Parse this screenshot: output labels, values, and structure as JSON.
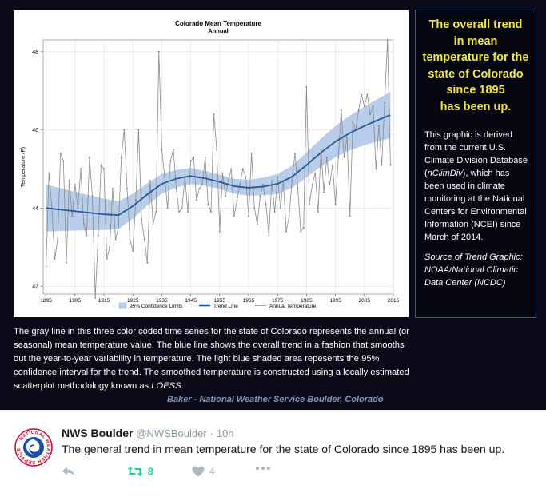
{
  "chart_data": {
    "type": "line",
    "title": "Colorado Mean Temperature",
    "subtitle": "Annual",
    "xlabel": "",
    "ylabel": "Temperature (F)",
    "xlim": [
      1894,
      2015
    ],
    "ylim": [
      41.8,
      48.3
    ],
    "xticks": [
      1895,
      1905,
      1915,
      1925,
      1935,
      1945,
      1955,
      1965,
      1975,
      1985,
      1995,
      2005,
      2015
    ],
    "yticks": [
      42,
      44,
      46,
      48
    ],
    "legend": [
      "95% Confidence Limits",
      "Trend Line",
      "Annual Temperature"
    ],
    "series": [
      {
        "name": "Annual Temperature",
        "x": [
          1895,
          1896,
          1897,
          1898,
          1899,
          1900,
          1901,
          1902,
          1903,
          1904,
          1905,
          1906,
          1907,
          1908,
          1909,
          1910,
          1911,
          1912,
          1913,
          1914,
          1915,
          1916,
          1917,
          1918,
          1919,
          1920,
          1921,
          1922,
          1923,
          1924,
          1925,
          1926,
          1927,
          1928,
          1929,
          1930,
          1931,
          1932,
          1933,
          1934,
          1935,
          1936,
          1937,
          1938,
          1939,
          1940,
          1941,
          1942,
          1943,
          1944,
          1945,
          1946,
          1947,
          1948,
          1949,
          1950,
          1951,
          1952,
          1953,
          1954,
          1955,
          1956,
          1957,
          1958,
          1959,
          1960,
          1961,
          1962,
          1963,
          1964,
          1965,
          1966,
          1967,
          1968,
          1969,
          1970,
          1971,
          1972,
          1973,
          1974,
          1975,
          1976,
          1977,
          1978,
          1979,
          1980,
          1981,
          1982,
          1983,
          1984,
          1985,
          1986,
          1987,
          1988,
          1989,
          1990,
          1991,
          1992,
          1993,
          1994,
          1995,
          1996,
          1997,
          1998,
          1999,
          2000,
          2001,
          2002,
          2003,
          2004,
          2005,
          2006,
          2007,
          2008,
          2009,
          2010,
          2011,
          2012,
          2013,
          2014
        ],
        "values": [
          42.5,
          44.9,
          44.0,
          42.7,
          43.2,
          45.4,
          45.2,
          42.6,
          44.7,
          43.8,
          44.6,
          44.0,
          45.0,
          43.6,
          43.3,
          45.3,
          44.3,
          41.7,
          43.3,
          45.1,
          45.0,
          42.7,
          43.0,
          44.5,
          43.2,
          43.5,
          45.3,
          46.0,
          44.5,
          43.2,
          42.9,
          44.2,
          46.0,
          43.7,
          43.2,
          42.6,
          44.7,
          43.6,
          43.9,
          48.0,
          45.5,
          44.8,
          44.0,
          45.2,
          45.5,
          44.5,
          43.9,
          44.0,
          44.8,
          43.9,
          45.2,
          45.3,
          44.2,
          44.5,
          44.6,
          45.3,
          44.1,
          43.9,
          46.4,
          45.5,
          43.4,
          44.9,
          44.3,
          44.7,
          45.0,
          43.8,
          44.2,
          44.6,
          45.0,
          44.8,
          43.8,
          45.4,
          44.0,
          43.6,
          44.3,
          44.6,
          44.1,
          43.3,
          44.7,
          43.9,
          44.8,
          44.0,
          44.7,
          43.4,
          43.8,
          44.7,
          45.4,
          44.5,
          43.4,
          43.5,
          47.1,
          44.1,
          44.6,
          44.9,
          43.9,
          45.5,
          44.4,
          45.3,
          44.6,
          45.1,
          44.1,
          45.3,
          46.5,
          45.3,
          45.8,
          43.8,
          46.2,
          46.0,
          46.5,
          46.9,
          46.6,
          46.9,
          46.4,
          46.6,
          45.0,
          46.1,
          45.1,
          46.7,
          48.3,
          45.1
        ]
      },
      {
        "name": "Trend Line",
        "x": [
          1895,
          1905,
          1915,
          1920,
          1925,
          1930,
          1935,
          1940,
          1945,
          1950,
          1955,
          1960,
          1965,
          1970,
          1975,
          1980,
          1985,
          1990,
          1995,
          2000,
          2005,
          2010,
          2014
        ],
        "values": [
          44.0,
          43.92,
          43.84,
          43.82,
          44.05,
          44.35,
          44.62,
          44.75,
          44.82,
          44.76,
          44.67,
          44.56,
          44.52,
          44.55,
          44.62,
          44.8,
          45.1,
          45.42,
          45.7,
          45.92,
          46.1,
          46.26,
          46.38
        ]
      }
    ]
  },
  "side_panel": {
    "title_lines": [
      "The overall trend",
      "in mean",
      "temperature for the",
      "state of Colorado",
      "since 1895",
      "has been up."
    ],
    "desc_pre": "This graphic is derived from the current U.S. Climate Division Database (",
    "desc_em": "nClimDiv",
    "desc_post": "), which has been used in climate monitoring at the National Centers for Environmental Information (NCEI) since March of 2014.",
    "source": "Source of Trend Graphic: NOAA/National Climatic Data Center (NCDC)"
  },
  "caption": {
    "text_pre": "The gray line in this three color coded time series for the state of Colorado represents the annual (or seasonal) mean temperature value. The blue line shows the overall trend in a fashion that smooths out the year-to-year variability in temperature. The light blue shaded area repesents the 95% confidence interval for the trend. The smoothed temperature is constructed using a locally estimated scatterplot methodology known as ",
    "text_em": "LOESS",
    "text_post": ".",
    "credit": "Baker - National Weather Service Boulder, Colorado"
  },
  "tweet": {
    "name": "NWS Boulder",
    "handle": "@NWSBoulder",
    "dot": "·",
    "time": "10h",
    "text": "The general trend in mean temperature for the state of Colorado since 1895 has been up.",
    "retweet_count": "8",
    "like_count": "4",
    "avatar_text": "NATIONAL WEATHER SERVICE",
    "colors": {
      "retweet": "#19cf86",
      "muted": "#aab8c2",
      "band": "#b7cdea",
      "trend": "#26579b",
      "annual": "#8a8a8a"
    }
  }
}
